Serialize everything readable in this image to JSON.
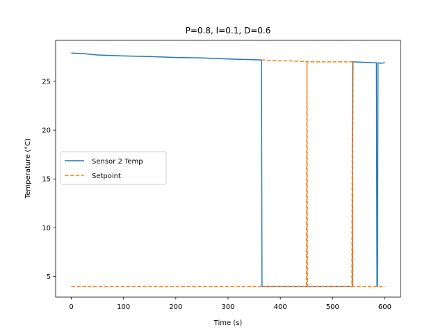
{
  "chart_data": {
    "type": "line",
    "title": "P=0.8, I=0.1, D=0.6",
    "xlabel": "Time (s)",
    "ylabel": "Temperature (°C)",
    "xlim": [
      -30,
      630
    ],
    "ylim": [
      2.9,
      29.2
    ],
    "xticks": [
      0,
      100,
      200,
      300,
      400,
      500,
      600
    ],
    "yticks": [
      5,
      10,
      15,
      20,
      25
    ],
    "legend_position": "center-left",
    "series": [
      {
        "name": "Sensor 2 Temp",
        "color": "#1f77b4",
        "style": "solid",
        "x": [
          0,
          20,
          50,
          100,
          150,
          200,
          250,
          300,
          330,
          364,
          365,
          366,
          400,
          450,
          500,
          538,
          539,
          540,
          560,
          580,
          584,
          585,
          586,
          587,
          588,
          590,
          600
        ],
        "y": [
          27.9,
          27.85,
          27.7,
          27.6,
          27.55,
          27.45,
          27.4,
          27.3,
          27.25,
          27.2,
          4.0,
          4.0,
          4.0,
          4.0,
          4.0,
          4.0,
          27.0,
          27.0,
          26.95,
          26.9,
          26.9,
          4.0,
          4.0,
          26.9,
          26.9,
          26.85,
          26.9
        ]
      },
      {
        "name": "Setpoint",
        "color": "#ff7f0e",
        "style": "dashed",
        "x": [
          0,
          100,
          200,
          300,
          400,
          449,
          450,
          451,
          452,
          500,
          537,
          538,
          539,
          600
        ],
        "y": [
          4.0,
          4.0,
          4.0,
          4.0,
          4.0,
          4.0,
          4.0,
          27.0,
          4.0,
          4.0,
          4.0,
          27.0,
          4.0,
          4.0
        ]
      },
      {
        "name": "",
        "color": "#ff7f0e",
        "style": "dashed",
        "x": [
          364,
          380,
          400,
          420,
          440,
          450,
          451,
          460,
          480,
          500,
          520,
          538
        ],
        "y": [
          27.2,
          27.15,
          27.1,
          27.1,
          27.05,
          27.05,
          27.0,
          27.0,
          27.0,
          27.0,
          27.0,
          27.0
        ]
      }
    ]
  }
}
